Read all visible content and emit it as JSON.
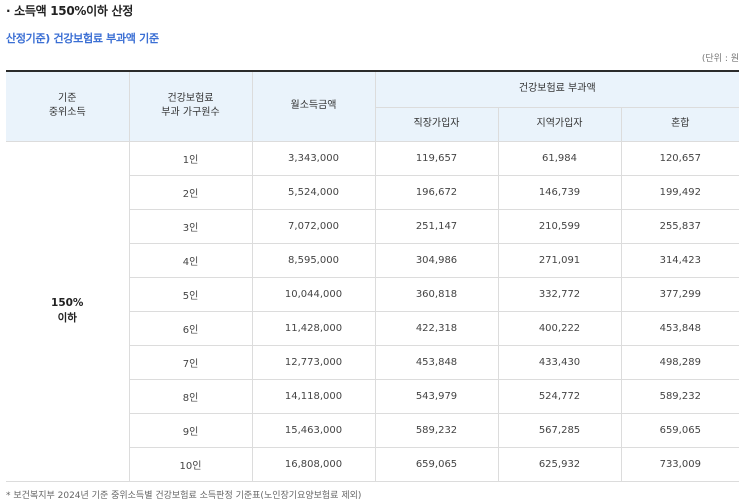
{
  "heading": "· 소득액 150%이하 산정",
  "subheading": "산정기준) 건강보험료 부과액 기준",
  "unit": "(단위 : 원",
  "table": {
    "col_base_income": [
      "기준",
      "중위소득"
    ],
    "col_household": [
      "건강보험료",
      "부과 가구원수"
    ],
    "col_monthly_income": "월소득금액",
    "col_premium_group": "건강보험료 부과액",
    "col_employee": "직장가입자",
    "col_regional": "지역가입자",
    "col_mixed": "혼합",
    "group_label": [
      "150%",
      "이하"
    ],
    "rows": [
      {
        "household": "1인",
        "income": "3,343,000",
        "employee": "119,657",
        "regional": "61,984",
        "mixed": "120,657"
      },
      {
        "household": "2인",
        "income": "5,524,000",
        "employee": "196,672",
        "regional": "146,739",
        "mixed": "199,492"
      },
      {
        "household": "3인",
        "income": "7,072,000",
        "employee": "251,147",
        "regional": "210,599",
        "mixed": "255,837"
      },
      {
        "household": "4인",
        "income": "8,595,000",
        "employee": "304,986",
        "regional": "271,091",
        "mixed": "314,423"
      },
      {
        "household": "5인",
        "income": "10,044,000",
        "employee": "360,818",
        "regional": "332,772",
        "mixed": "377,299"
      },
      {
        "household": "6인",
        "income": "11,428,000",
        "employee": "422,318",
        "regional": "400,222",
        "mixed": "453,848"
      },
      {
        "household": "7인",
        "income": "12,773,000",
        "employee": "453,848",
        "regional": "433,430",
        "mixed": "498,289"
      },
      {
        "household": "8인",
        "income": "14,118,000",
        "employee": "543,979",
        "regional": "524,772",
        "mixed": "589,232"
      },
      {
        "household": "9인",
        "income": "15,463,000",
        "employee": "589,232",
        "regional": "567,285",
        "mixed": "659,065"
      },
      {
        "household": "10인",
        "income": "16,808,000",
        "employee": "659,065",
        "regional": "625,932",
        "mixed": "733,009"
      }
    ]
  },
  "footnote": "* 보건복지부 2024년 기준 중위소득별 건강보험료 소득판정 기준표(노인장기요양보험료 제외)"
}
